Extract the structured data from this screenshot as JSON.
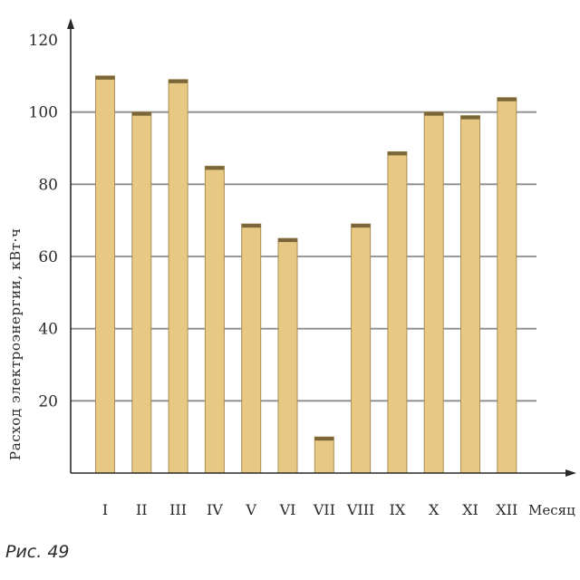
{
  "chart_data": {
    "type": "bar",
    "categories": [
      "I",
      "II",
      "III",
      "IV",
      "V",
      "VI",
      "VII",
      "VIII",
      "IX",
      "X",
      "XI",
      "XII"
    ],
    "values": [
      110,
      100,
      109,
      85,
      69,
      65,
      10,
      69,
      89,
      100,
      99,
      104
    ],
    "title": "",
    "xlabel": "Месяц",
    "ylabel": "Расход электроэнергии, кВт·ч",
    "ylim": [
      0,
      120
    ],
    "yticks": [
      20,
      40,
      60,
      80,
      100,
      120
    ],
    "grid": true,
    "bar_color": "#e8c983",
    "bar_edge_color": "#a98e55",
    "grid_color": "#8c8c8c"
  },
  "figure": {
    "caption": "Рис. 49"
  }
}
